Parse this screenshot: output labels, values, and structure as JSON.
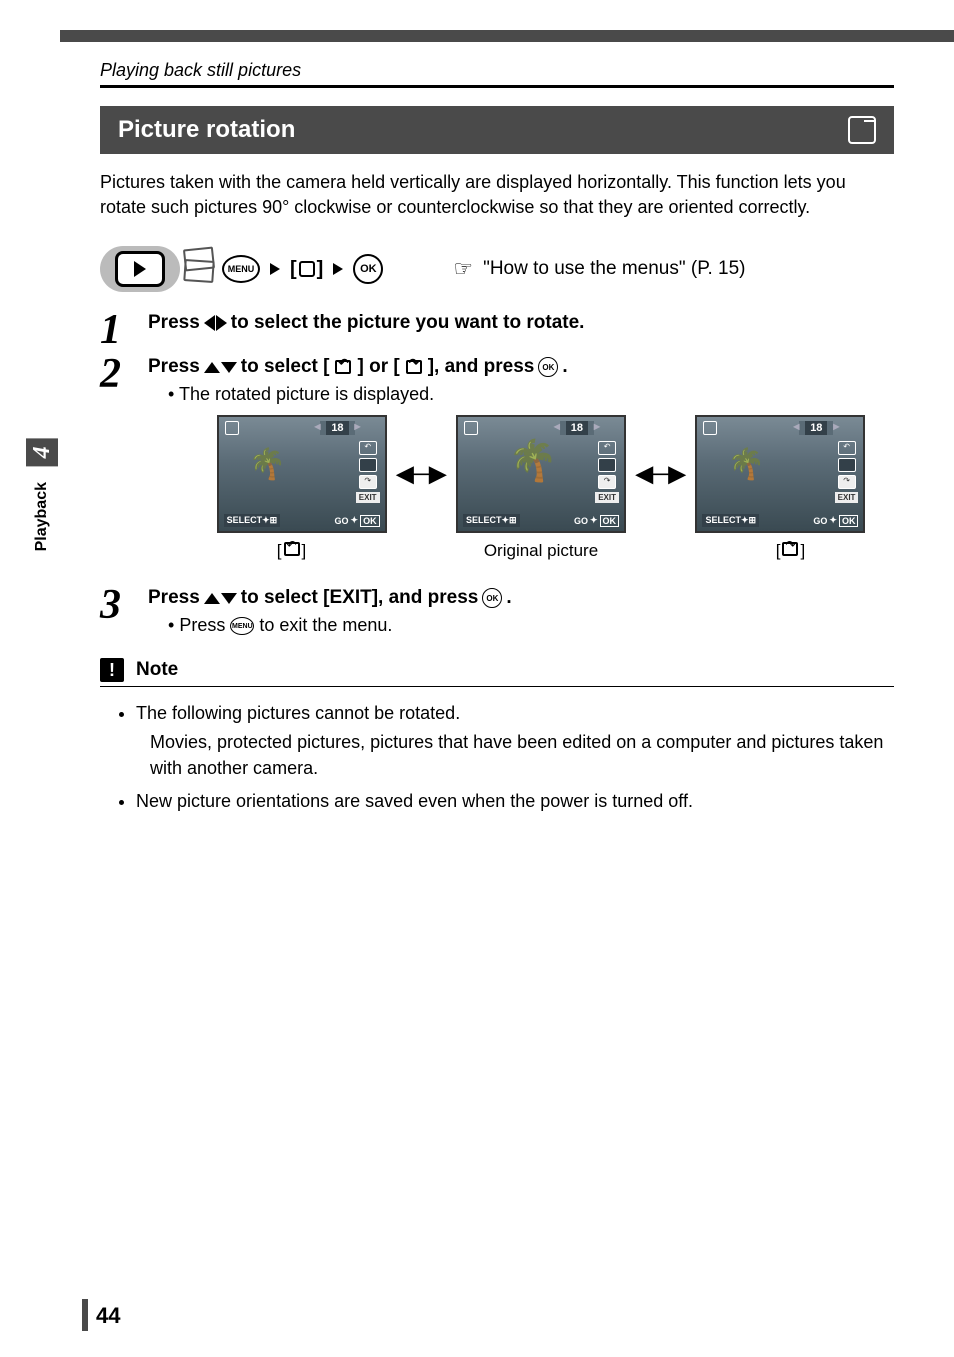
{
  "runningHead": "Playing back still pictures",
  "section": {
    "title": "Picture rotation",
    "intro": "Pictures taken with the camera held vertically are displayed horizontally. This function lets you rotate such pictures 90° clockwise or counterclockwise so that they are oriented correctly."
  },
  "navRow": {
    "menuLabel": "MENU",
    "bracketHint": "[   ]",
    "okLabel": "OK",
    "refText": "\"How to use the menus\" (P. 15)"
  },
  "steps": {
    "s1": {
      "num": "1",
      "pre": "Press ",
      "post": " to select the picture you want to rotate."
    },
    "s2": {
      "num": "2",
      "pre": "Press ",
      "mid1": " to select [",
      "mid2": "] or [",
      "mid3": "], and press ",
      "end": ".",
      "bullet": "The rotated picture is displayed."
    },
    "s3": {
      "num": "3",
      "pre": "Press ",
      "mid": " to select [EXIT], and press ",
      "end": ".",
      "bullet": "Press ",
      "bulletEnd": " to exit the menu."
    }
  },
  "screens": {
    "count": "18",
    "exit": "EXIT",
    "select": "SELECT",
    "go": "GO",
    "ok": "OK",
    "labelLeft": "[    ]",
    "labelMid": "Original picture",
    "labelRight": "[    ]"
  },
  "note": {
    "label": "Note",
    "b1": "The following pictures cannot be rotated.",
    "b1sub": "Movies, protected pictures, pictures that have been edited on a computer and pictures taken with another camera.",
    "b2": "New picture orientations are saved even when the power is turned off."
  },
  "sideTab": {
    "chapter": "4",
    "label": "Playback"
  },
  "pageNum": "44",
  "colors": {
    "headerBg": "#4a4a4a",
    "text": "#000000"
  }
}
